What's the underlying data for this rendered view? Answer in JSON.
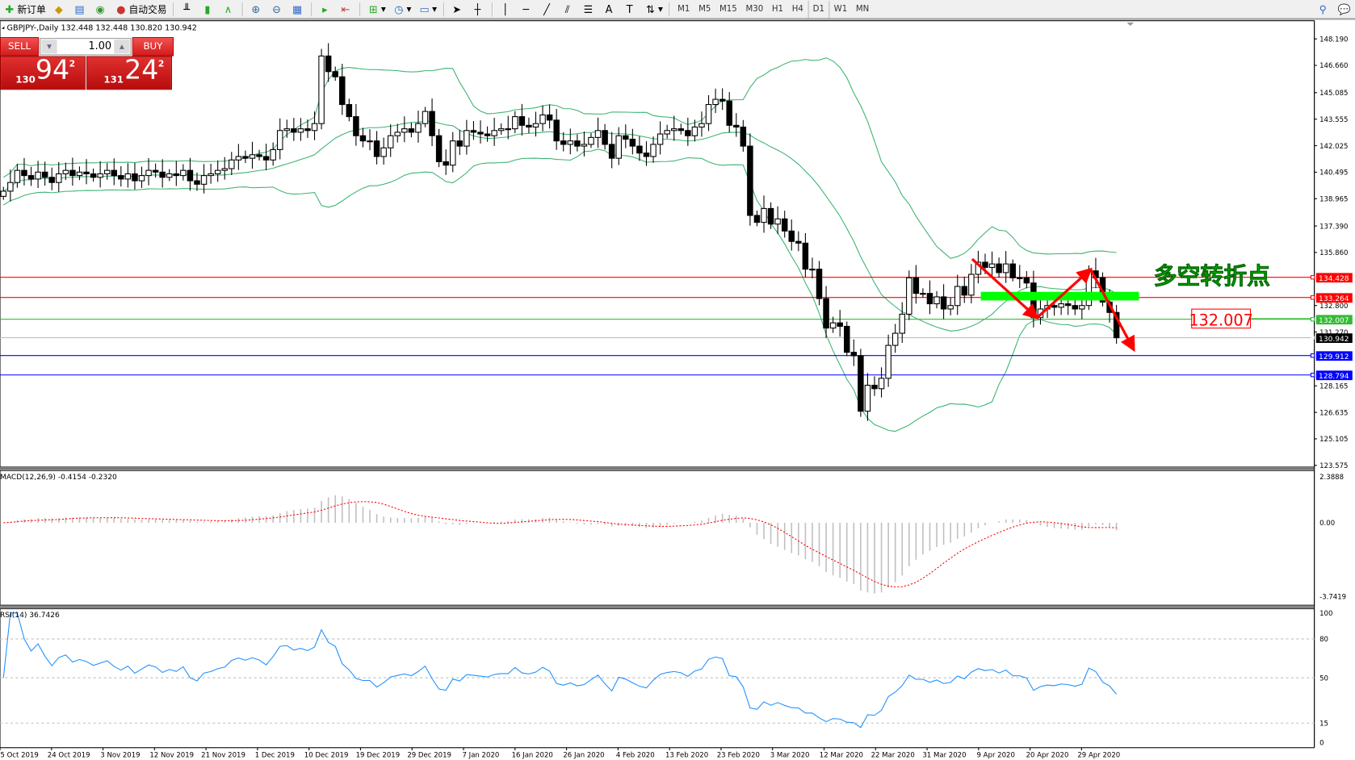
{
  "toolbar": {
    "new_order": "新订单",
    "auto_trading": "自动交易",
    "timeframes": [
      "M1",
      "M5",
      "M15",
      "M30",
      "H1",
      "H4",
      "D1",
      "W1",
      "MN"
    ],
    "active_timeframe": "D1"
  },
  "trade_panel": {
    "sell_label": "SELL",
    "buy_label": "BUY",
    "lot": "1.00",
    "sell_price": {
      "prefix": "130",
      "big": "94",
      "sup": "2"
    },
    "buy_price": {
      "prefix": "131",
      "big": "24",
      "sup": "2"
    }
  },
  "chart_data": {
    "type": "candlestick",
    "title": "GBPJPY-,Daily  132.448 132.448 130.820 130.942",
    "symbol": "GBPJPY-",
    "period": "Daily",
    "ohlc_last": {
      "open": 132.448,
      "high": 132.448,
      "low": 130.82,
      "close": 130.942
    },
    "closes": [
      139.4,
      139.9,
      140.6,
      140.3,
      140.1,
      140.5,
      140.2,
      139.9,
      140.4,
      140.6,
      140.3,
      140.5,
      140.4,
      140.2,
      140.4,
      140.6,
      140.3,
      140.1,
      140.4,
      140.0,
      140.3,
      140.6,
      140.5,
      140.2,
      140.4,
      140.3,
      140.6,
      140.0,
      139.8,
      140.3,
      140.4,
      140.6,
      140.7,
      141.2,
      141.4,
      141.3,
      141.5,
      141.4,
      141.2,
      141.8,
      142.9,
      143.0,
      142.8,
      143.0,
      142.9,
      143.3,
      147.2,
      146.3,
      146.0,
      144.4,
      143.7,
      142.6,
      142.3,
      142.3,
      141.4,
      141.9,
      142.6,
      142.8,
      143.0,
      142.8,
      143.3,
      144.0,
      142.6,
      141.1,
      140.9,
      142.3,
      142.0,
      142.9,
      142.8,
      142.7,
      142.6,
      142.9,
      143.0,
      143.0,
      143.7,
      143.2,
      143.1,
      143.3,
      143.8,
      143.5,
      142.3,
      142.1,
      142.3,
      142.0,
      142.1,
      142.5,
      142.9,
      142.1,
      141.3,
      142.6,
      142.4,
      142.0,
      141.6,
      141.4,
      142.1,
      142.7,
      142.9,
      143.0,
      142.9,
      142.6,
      143.1,
      143.3,
      144.4,
      144.7,
      144.6,
      143.2,
      143.1,
      142.0,
      138.0,
      137.6,
      138.4,
      137.5,
      137.8,
      137.1,
      136.5,
      136.4,
      134.9,
      134.9,
      133.2,
      131.5,
      131.8,
      131.6,
      130.1,
      129.9,
      126.7,
      128.2,
      128.0,
      128.6,
      130.5,
      131.2,
      132.3,
      134.4,
      133.5,
      133.5,
      132.9,
      133.3,
      132.6,
      132.8,
      133.9,
      133.4,
      134.6,
      135.3,
      135.0,
      135.2,
      134.7,
      135.2,
      134.4,
      134.4,
      134.1,
      132.1,
      132.6,
      132.8,
      132.7,
      132.9,
      132.8,
      132.6,
      132.8,
      134.8,
      134.4,
      133.0,
      132.4,
      130.942
    ],
    "price_axis_ticks": [
      "148.190",
      "146.660",
      "145.085",
      "143.555",
      "142.025",
      "140.495",
      "138.965",
      "137.390",
      "135.860",
      "132.800",
      "131.270",
      "128.165",
      "126.635",
      "125.105",
      "123.575"
    ],
    "ylim": [
      123.575,
      148.19
    ],
    "date_ticks": [
      "15 Oct 2019",
      "24 Oct 2019",
      "3 Nov 2019",
      "12 Nov 2019",
      "21 Nov 2019",
      "1 Dec 2019",
      "10 Dec 2019",
      "19 Dec 2019",
      "29 Dec 2019",
      "7 Jan 2020",
      "16 Jan 2020",
      "26 Jan 2020",
      "4 Feb 2020",
      "13 Feb 2020",
      "23 Feb 2020",
      "3 Mar 2020",
      "12 Mar 2020",
      "22 Mar 2020",
      "31 Mar 2020",
      "9 Apr 2020",
      "20 Apr 2020",
      "29 Apr 2020"
    ],
    "bollinger": {
      "period": 20,
      "deviation": 2,
      "color": "#3cb371"
    },
    "horizontal_lines": [
      {
        "price": "134.428",
        "color": "#ff0000"
      },
      {
        "price": "133.264",
        "color": "#ff0000"
      },
      {
        "price": "132.007",
        "color": "#33bb33"
      },
      {
        "price": "130.942",
        "color": "#c0c0c0",
        "label_bg": "#000000"
      },
      {
        "price": "129.912",
        "color": "#0000ff"
      },
      {
        "price": "128.794",
        "color": "#0000ff"
      }
    ],
    "annotations": {
      "text": "多空转折点",
      "text_color": "#00ee00",
      "price_label": "132.007",
      "zone_color": "#00ff00",
      "arrow_color": "#ff0000"
    },
    "macd": {
      "label": "MACD(12,26,9) -0.4154 -0.2320",
      "ticks": [
        "2.3888",
        "0.00",
        "-3.7419"
      ],
      "ylim": [
        -3.7419,
        2.3888
      ],
      "histogram_color": "#c0c0c0",
      "signal_color": "#ff0000"
    },
    "rsi": {
      "label": "RSI(14) 36.7426",
      "ticks": [
        "100",
        "80",
        "50",
        "15",
        "0"
      ],
      "levels": [
        80,
        50,
        15
      ],
      "ylim": [
        0,
        100
      ],
      "color": "#1e90ff"
    }
  }
}
